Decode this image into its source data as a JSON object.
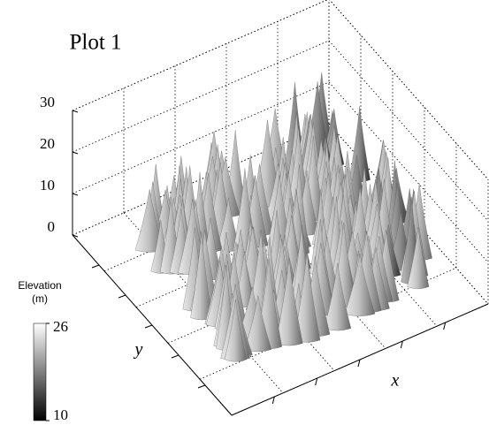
{
  "chart_data": {
    "type": "surface",
    "title": "Plot 1",
    "x_label": "x",
    "y_label": "y",
    "zlim": [
      0,
      30
    ],
    "zticks": [
      0,
      10,
      20,
      30
    ],
    "grid": true,
    "colorbar_label": "Elevation (m)",
    "clim": [
      10,
      26
    ],
    "cticks": [
      10,
      26
    ],
    "colormap": [
      "#000000",
      "#ffffff"
    ]
  }
}
